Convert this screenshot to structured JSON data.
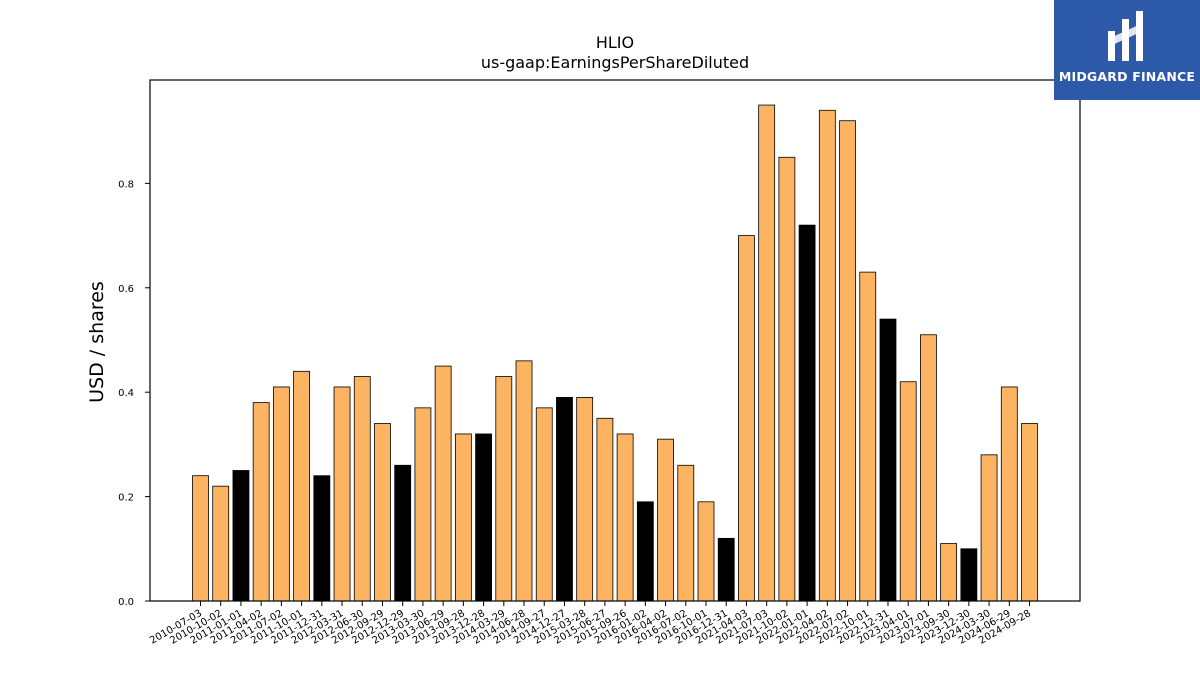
{
  "chart_data": {
    "type": "bar",
    "title": "HLIO",
    "subtitle": "us-gaap:EarningsPerShareDiluted",
    "xlabel": "",
    "ylabel": "USD / shares",
    "ylim": [
      0,
      1.0
    ],
    "yticks": [
      0.0,
      0.2,
      0.4,
      0.6,
      0.8
    ],
    "ytick_labels": [
      "0.0",
      "0.2",
      "0.4",
      "0.6",
      "0.8"
    ],
    "grid": false,
    "colors": {
      "default": "#fdb462",
      "highlight": "#000000",
      "edge": "#000000"
    },
    "categories": [
      "2010-07-03",
      "2010-10-02",
      "2011-01-01",
      "2011-04-02",
      "2011-07-02",
      "2011-10-01",
      "2011-12-31",
      "2012-03-31",
      "2012-06-30",
      "2012-09-29",
      "2012-12-29",
      "2013-03-30",
      "2013-06-29",
      "2013-09-28",
      "2013-12-28",
      "2014-03-29",
      "2014-06-28",
      "2014-09-27",
      "2014-12-27",
      "2015-03-28",
      "2015-06-27",
      "2015-09-26",
      "2016-01-02",
      "2016-04-02",
      "2016-07-02",
      "2016-10-01",
      "2016-12-31",
      "2021-04-03",
      "2021-07-03",
      "2021-10-02",
      "2022-01-01",
      "2022-04-02",
      "2022-07-02",
      "2022-10-01",
      "2022-12-31",
      "2023-04-01",
      "2023-07-01",
      "2023-09-30",
      "2023-12-30",
      "2024-03-30",
      "2024-06-29",
      "2024-09-28"
    ],
    "values": [
      0.24,
      0.22,
      0.25,
      0.38,
      0.41,
      0.44,
      0.24,
      0.41,
      0.43,
      0.34,
      0.26,
      0.37,
      0.45,
      0.32,
      0.32,
      0.43,
      0.46,
      0.37,
      0.39,
      0.39,
      0.35,
      0.32,
      0.19,
      0.31,
      0.26,
      0.19,
      0.12,
      0.7,
      0.95,
      0.85,
      0.72,
      0.94,
      0.92,
      0.63,
      0.54,
      0.42,
      0.51,
      0.11,
      0.1,
      0.28,
      0.41,
      0.34
    ],
    "highlighted": [
      false,
      false,
      true,
      false,
      false,
      false,
      true,
      false,
      false,
      false,
      true,
      false,
      false,
      false,
      true,
      false,
      false,
      false,
      true,
      false,
      false,
      false,
      true,
      false,
      false,
      false,
      true,
      false,
      false,
      false,
      true,
      false,
      false,
      false,
      true,
      false,
      false,
      false,
      true,
      false,
      false,
      false
    ]
  },
  "logo": {
    "text": "MIDGARD FINANCE",
    "background": "#2d5aa8"
  }
}
